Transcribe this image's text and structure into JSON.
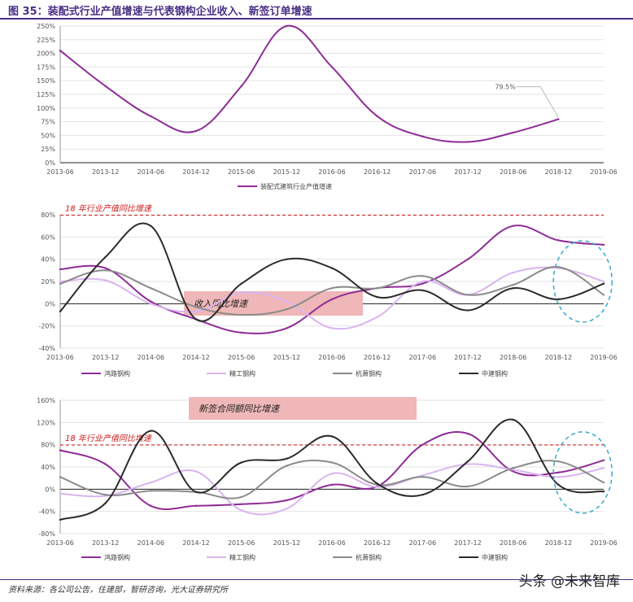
{
  "figure_title": "图 35：装配式行业产值增速与代表钢构企业收入、新签订单增速",
  "source": "资料来源：各公司公告，住建部，智研咨询，光大证券研究所",
  "watermark": "头条 @未来智库",
  "colors": {
    "purple": "#8e2c97",
    "light_purple": "#d9b5f0",
    "gray": "#8a8a8a",
    "black": "#2b2b2b",
    "red": "#d01818",
    "cyan": "#33aacc",
    "box_fill": "#efb7b7"
  },
  "chart_data": [
    {
      "type": "line",
      "x": [
        "2013-06",
        "2013-12",
        "2014-06",
        "2014-12",
        "2015-06",
        "2015-12",
        "2016-06",
        "2016-12",
        "2017-06",
        "2017-12",
        "2018-06",
        "2018-12",
        "2019-06"
      ],
      "ylim": [
        0,
        250
      ],
      "yticks": [
        "0%",
        "25%",
        "50%",
        "75%",
        "100%",
        "125%",
        "150%",
        "175%",
        "200%",
        "225%",
        "250%"
      ],
      "series": [
        {
          "name": "装配式建筑行业产值增速",
          "color": "#8e2c97",
          "values": [
            205,
            140,
            85,
            58,
            140,
            250,
            175,
            85,
            48,
            38,
            55,
            79.5,
            null
          ]
        }
      ],
      "annotation": "79.5%"
    },
    {
      "type": "line",
      "x": [
        "2013-06",
        "2013-12",
        "2014-06",
        "2014-12",
        "2015-06",
        "2015-12",
        "2016-06",
        "2016-12",
        "2017-06",
        "2017-12",
        "2018-06",
        "2018-12",
        "2019-06"
      ],
      "ylim": [
        -40,
        80
      ],
      "yticks": [
        "-40%",
        "-20%",
        "0%",
        "20%",
        "40%",
        "60%",
        "80%"
      ],
      "reference_label": "18 年行业产值同比增速",
      "reference_value": 79.5,
      "box_label": "收入同比增速",
      "series": [
        {
          "name": "鸿路钢构",
          "color": "#8e2c97",
          "values": [
            31,
            32,
            2,
            -14,
            -26,
            -22,
            4,
            14,
            18,
            40,
            70,
            57,
            53
          ]
        },
        {
          "name": "精工钢构",
          "color": "#d9b5f0",
          "values": [
            20,
            21,
            0,
            -7,
            10,
            2,
            -22,
            -12,
            20,
            8,
            28,
            32,
            20
          ]
        },
        {
          "name": "杭萧钢构",
          "color": "#8a8a8a",
          "values": [
            18,
            30,
            14,
            -3,
            -10,
            -5,
            14,
            14,
            25,
            8,
            17,
            33,
            8
          ]
        },
        {
          "name": "中建钢构",
          "color": "#2b2b2b",
          "values": [
            -7,
            42,
            70,
            -14,
            18,
            40,
            32,
            6,
            12,
            -6,
            14,
            4,
            18
          ]
        }
      ]
    },
    {
      "type": "line",
      "x": [
        "2013-06",
        "2013-12",
        "2014-06",
        "2014-12",
        "2015-06",
        "2015-12",
        "2016-06",
        "2016-12",
        "2017-06",
        "2017-12",
        "2018-06",
        "2018-12",
        "2019-06"
      ],
      "ylim": [
        -80,
        160
      ],
      "yticks": [
        "-80%",
        "-40%",
        "0%",
        "40%",
        "80%",
        "120%",
        "160%"
      ],
      "reference_label": "18 年行业产值同比增速",
      "reference_value": 79.5,
      "box_label": "新签合同额同比增速",
      "series": [
        {
          "name": "鸿路钢构",
          "color": "#8e2c97",
          "values": [
            70,
            45,
            -30,
            -30,
            -27,
            -20,
            8,
            5,
            80,
            100,
            32,
            30,
            52
          ]
        },
        {
          "name": "精工钢构",
          "color": "#d9b5f0",
          "values": [
            -8,
            -12,
            12,
            32,
            -38,
            -35,
            28,
            4,
            25,
            45,
            35,
            22,
            38
          ]
        },
        {
          "name": "杭萧钢构",
          "color": "#8a8a8a",
          "values": [
            22,
            -10,
            -3,
            -5,
            -14,
            42,
            48,
            8,
            22,
            5,
            38,
            50,
            12
          ]
        },
        {
          "name": "中建钢构",
          "color": "#2b2b2b",
          "values": [
            -55,
            -25,
            105,
            -5,
            48,
            55,
            95,
            10,
            -10,
            50,
            125,
            8,
            -4
          ]
        }
      ]
    }
  ]
}
